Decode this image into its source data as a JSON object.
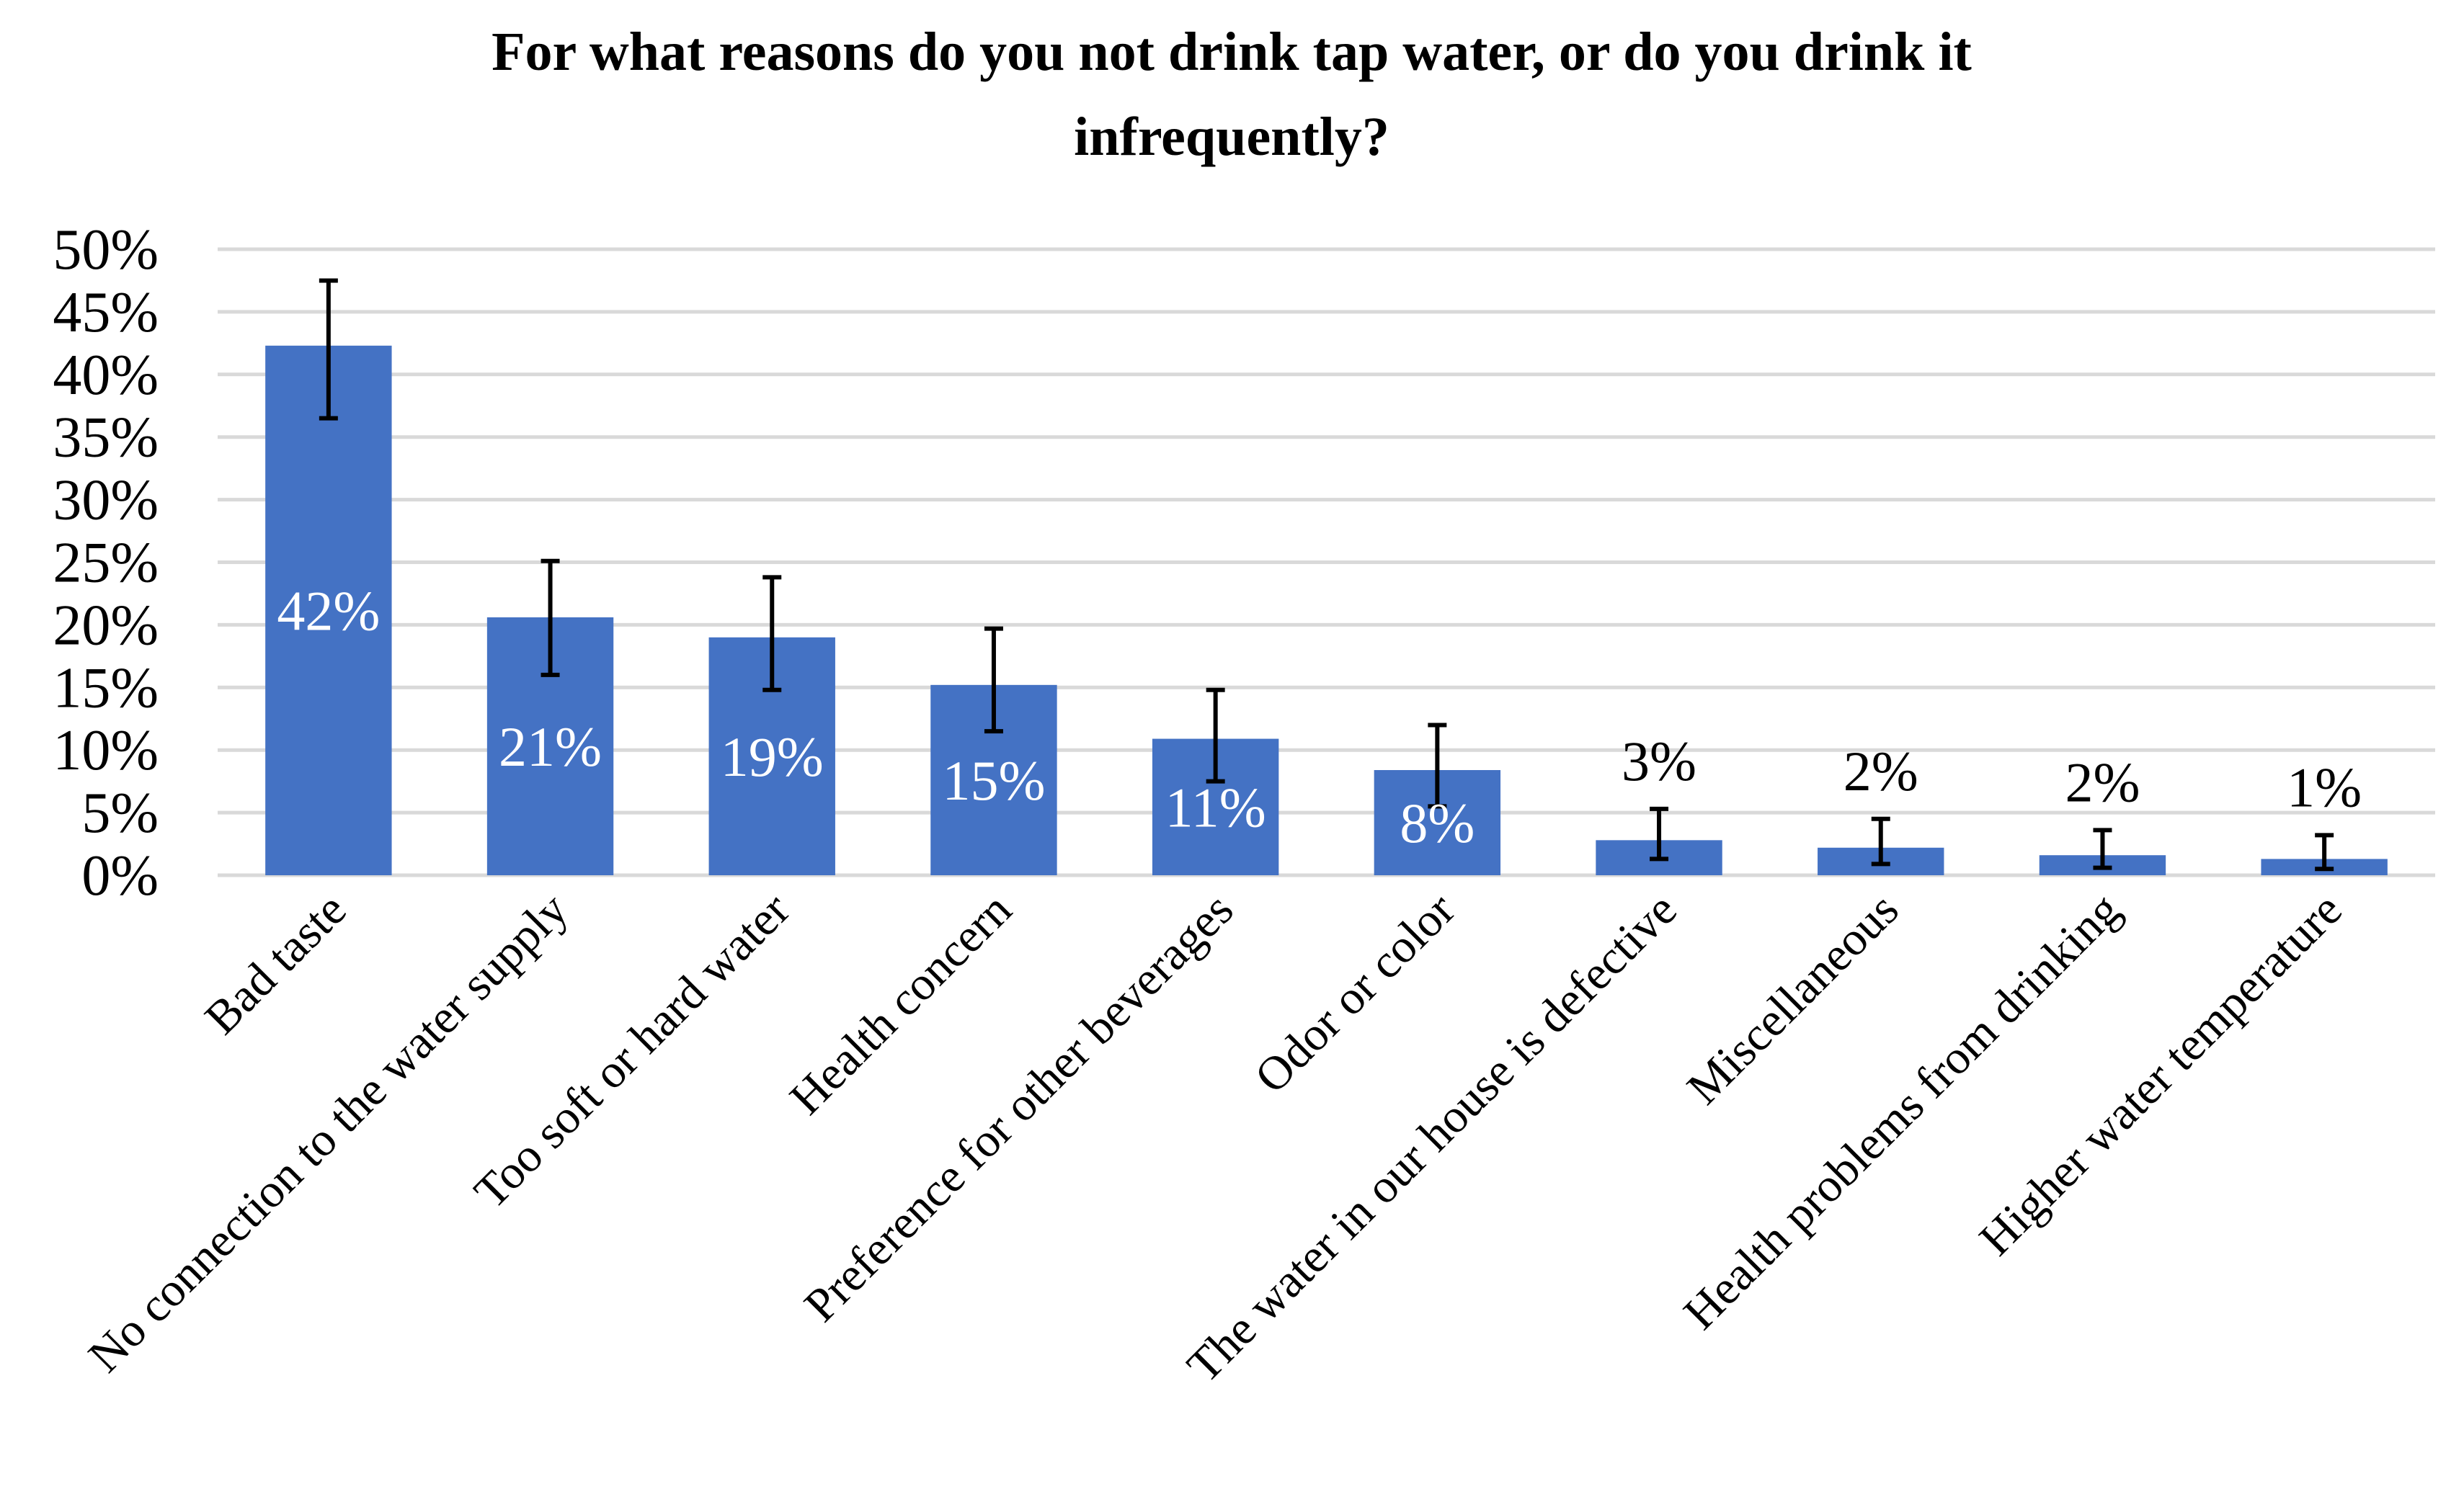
{
  "chart_data": {
    "type": "bar",
    "title": "For what reasons do you not drink tap water, or do you drink it infrequently?",
    "title_lines": [
      "For what reasons do you not drink tap water, or do you drink it",
      "infrequently?"
    ],
    "xlabel": "",
    "ylabel": "",
    "ylim": [
      0,
      50
    ],
    "yticks": [
      0,
      5,
      10,
      15,
      20,
      25,
      30,
      35,
      40,
      45,
      50
    ],
    "ytick_labels": [
      "0%",
      "5%",
      "10%",
      "15%",
      "20%",
      "25%",
      "30%",
      "35%",
      "40%",
      "45%",
      "50%"
    ],
    "grid": true,
    "categories": [
      "Bad taste",
      "No connection to the water supply",
      "Too soft or hard water",
      "Health concern",
      "Preference for other beverages",
      "Odor or color",
      "The water in our house is defective",
      "Miscellaneous",
      "Health problems from drinking",
      "Higher water temperature"
    ],
    "values": [
      42.3,
      20.6,
      19.0,
      15.2,
      10.9,
      8.4,
      2.8,
      2.2,
      1.6,
      1.3
    ],
    "data_labels": [
      "42%",
      "21%",
      "19%",
      "15%",
      "11%",
      "8%",
      "3%",
      "2%",
      "2%",
      "1%"
    ],
    "error_low": [
      36.5,
      16.0,
      14.8,
      11.5,
      7.5,
      5.5,
      1.3,
      0.9,
      0.6,
      0.5
    ],
    "error_high": [
      47.5,
      25.1,
      23.8,
      19.7,
      14.8,
      12.0,
      5.3,
      4.5,
      3.6,
      3.2
    ],
    "colors": {
      "bar": "#4472C4",
      "grid": "#D9D9D9",
      "error_bar": "#000000",
      "label_inside": "#FFFFFF",
      "label_outside": "#000000"
    }
  }
}
